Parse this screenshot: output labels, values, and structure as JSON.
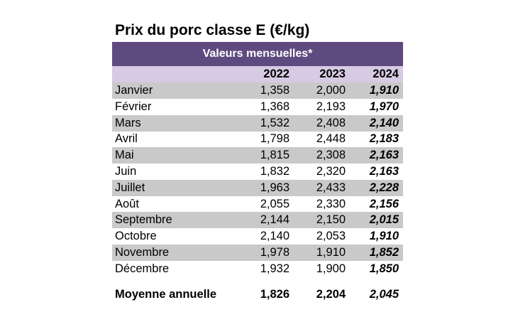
{
  "header": {
    "title": "Prix du porc classe E (€/kg)",
    "subtitle": "Valeurs mensuelles*"
  },
  "table": {
    "columns": [
      "2022",
      "2023",
      "2024"
    ],
    "rows": [
      [
        "Janvier",
        "1,358",
        "2,000",
        "1,910"
      ],
      [
        "Février",
        "1,368",
        "2,193",
        "1,970"
      ],
      [
        "Mars",
        "1,532",
        "2,408",
        "2,140"
      ],
      [
        "Avril",
        "1,798",
        "2,448",
        "2,183"
      ],
      [
        "Mai",
        "1,815",
        "2,308",
        "2,163"
      ],
      [
        "Juin",
        "1,832",
        "2,320",
        "2,163"
      ],
      [
        "Juillet",
        "1,963",
        "2,433",
        "2,228"
      ],
      [
        "Août",
        "2,055",
        "2,330",
        "2,156"
      ],
      [
        "Septembre",
        "2,144",
        "2,150",
        "2,015"
      ],
      [
        "Octobre",
        "2,140",
        "2,053",
        "1,910"
      ],
      [
        "Novembre",
        "1,978",
        "1,910",
        "1,852"
      ],
      [
        "Décembre",
        "1,932",
        "1,900",
        "1,850"
      ]
    ],
    "summary": [
      "Moyenne annuelle",
      "1,826",
      "2,204",
      "2,045"
    ]
  }
}
